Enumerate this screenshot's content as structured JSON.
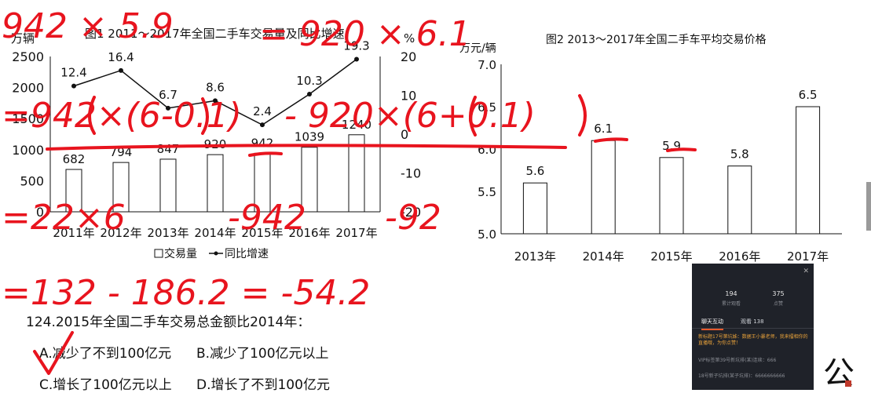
{
  "chart_data": [
    {
      "type": "bar+line",
      "title": "图1  2011～2017年全国二手车交易量及同比增速",
      "y_left_unit": "万辆",
      "y_right_unit": "%",
      "categories": [
        "2011年",
        "2012年",
        "2013年",
        "2014年",
        "2015年",
        "2016年",
        "2017年"
      ],
      "series": [
        {
          "name": "交易量",
          "type": "bar",
          "values": [
            682,
            794,
            847,
            920,
            942,
            1039,
            1240
          ]
        },
        {
          "name": "同比增速",
          "type": "line",
          "values": [
            12.4,
            16.4,
            6.7,
            8.6,
            2.4,
            10.3,
            19.3
          ]
        }
      ],
      "y_left_ticks": [
        "2500",
        "2000",
        "1500",
        "1000",
        "500",
        "0"
      ],
      "y_right_ticks": [
        "20",
        "10",
        "0",
        "-10",
        "-20"
      ],
      "ylim_left": [
        0,
        2500
      ],
      "ylim_right": [
        -20,
        20
      ],
      "legend": [
        "交易量",
        "同比增速"
      ],
      "legend_position": "bottom"
    },
    {
      "type": "bar",
      "title": "图2  2013～2017年全国二手车平均交易价格",
      "y_unit": "万元/辆",
      "categories": [
        "2013年",
        "2014年",
        "2015年",
        "2016年",
        "2017年"
      ],
      "values": [
        5.6,
        6.1,
        5.9,
        5.8,
        6.5
      ],
      "y_ticks": [
        "7.0",
        "6.5",
        "6.0",
        "5.5",
        "5.0"
      ],
      "ylim": [
        5.0,
        7.0
      ]
    }
  ],
  "question": {
    "title": "124.2015年全国二手车交易总金额比2014年：",
    "options": [
      "A.减少了不到100亿元",
      "B.减少了100亿元以上",
      "C.增长了100亿元以上",
      "D.增长了不到100亿元"
    ]
  },
  "handwriting": {
    "line1a": "942 × 5.9",
    "line1b": "= 920 × 6.1",
    "line2a": "=942×(6-0.1)",
    "line2b": "- 920×(6+0.1)",
    "line3a": "=22×6",
    "line3b": "-942",
    "line3c": "-92",
    "line4": "=132 - 186.2 = -54.2",
    "color": "#e8141e"
  },
  "chat_panel": {
    "stat1_value": "194",
    "stat1_label": "累计观看",
    "stat2_value": "375",
    "stat2_label": "点赞",
    "tab1": "聊天互动",
    "tab2": "观看 138",
    "msg1": "新标题17号第坑姊：数据王小暴老师，我来擂相你的直播哦，为你点赞！",
    "msg2": "VIP标签第39号新坑排(某)连续：666",
    "msg3": "18号新子坑排(某子坑排)：6666666666"
  },
  "brand_text": "公"
}
